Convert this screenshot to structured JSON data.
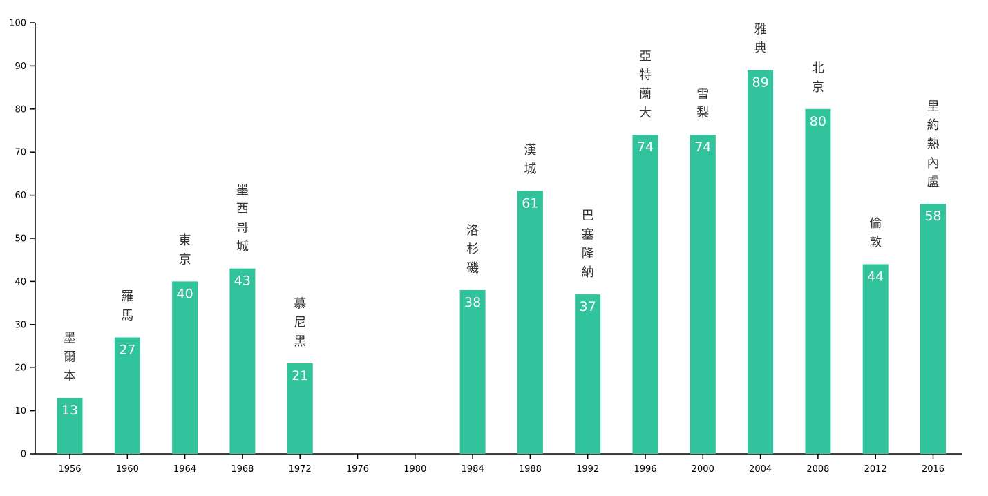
{
  "chart_data": {
    "type": "bar",
    "categories": [
      "1956",
      "1960",
      "1964",
      "1968",
      "1972",
      "1976",
      "1980",
      "1984",
      "1988",
      "1992",
      "1996",
      "2000",
      "2004",
      "2008",
      "2012",
      "2016"
    ],
    "values": [
      13,
      27,
      40,
      43,
      21,
      null,
      null,
      38,
      61,
      37,
      74,
      74,
      89,
      80,
      44,
      58
    ],
    "data_labels": [
      "13",
      "27",
      "40",
      "43",
      "21",
      "",
      "",
      "38",
      "61",
      "37",
      "74",
      "74",
      "89",
      "80",
      "44",
      "58"
    ],
    "annotations": [
      "墨爾本",
      "羅馬",
      "東京",
      "墨西哥城",
      "慕尼黑",
      "",
      "",
      "洛杉磯",
      "漢城",
      "巴塞隆納",
      "亞特蘭大",
      "雪梨",
      "雅典",
      "北京",
      "倫敦",
      "里約熱內盧"
    ],
    "y_ticks": [
      "0",
      "10",
      "20",
      "30",
      "40",
      "50",
      "60",
      "70",
      "80",
      "90",
      "100"
    ],
    "ylim": [
      0,
      100
    ],
    "grid": false,
    "bar_color": "#31c39b"
  }
}
